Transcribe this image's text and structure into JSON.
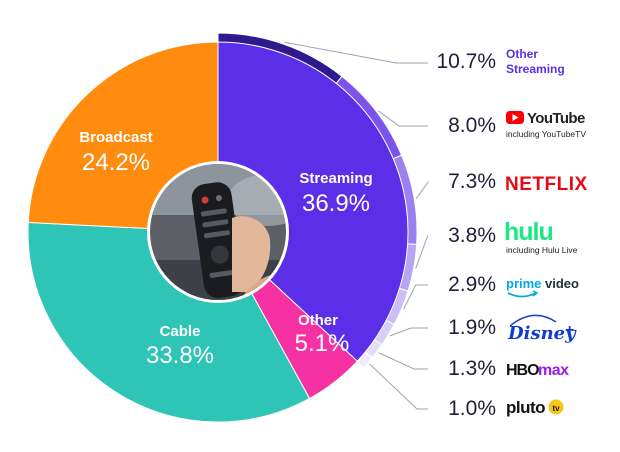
{
  "chart_data": {
    "type": "pie",
    "style": "donut-with-outer-breakdown",
    "slices": [
      {
        "label": "Streaming",
        "value": 36.9,
        "display": "36.9%",
        "color": "#5b2ee8"
      },
      {
        "label": "Other",
        "value": 5.1,
        "display": "5.1%",
        "color": "#f531a3"
      },
      {
        "label": "Cable",
        "value": 33.8,
        "display": "33.8%",
        "color": "#2ec4b6"
      },
      {
        "label": "Broadcast",
        "value": 24.2,
        "display": "24.2%",
        "color": "#ff8c0f"
      }
    ],
    "streaming_breakdown": [
      {
        "name": "Other Streaming",
        "value": 10.7,
        "display": "10.7%",
        "color": "#5b2ee8"
      },
      {
        "name": "YouTube",
        "sub": "including YouTubeTV",
        "value": 8.0,
        "display": "8.0%",
        "color": "#7a54ec"
      },
      {
        "name": "NETFLIX",
        "value": 7.3,
        "display": "7.3%",
        "color": "#9b80f0"
      },
      {
        "name": "hulu",
        "sub": "including Hulu Live",
        "value": 3.8,
        "display": "3.8%",
        "color": "#b7a4f4"
      },
      {
        "name": "prime video",
        "value": 2.9,
        "display": "2.9%",
        "color": "#cbbef7"
      },
      {
        "name": "Disney+",
        "value": 1.9,
        "display": "1.9%",
        "color": "#d8cff9"
      },
      {
        "name": "HBO max",
        "value": 1.3,
        "display": "1.3%",
        "color": "#e4defb"
      },
      {
        "name": "pluto tv",
        "value": 1.0,
        "display": "1.0%",
        "color": "#efebfd"
      }
    ],
    "colors": {
      "streaming_ring": "#2e1a8c",
      "leader_line": "#9aa3b5",
      "text_dark": "#1f1f3a",
      "youtube_red": "#ff0000",
      "netflix_red": "#e50914",
      "hulu_green": "#1ce783",
      "prime_blue": "#00a8e1",
      "disney_blue": "#113ccf",
      "hbo_purple": "#991eeb"
    },
    "center_image": "tv-remote-photo"
  }
}
